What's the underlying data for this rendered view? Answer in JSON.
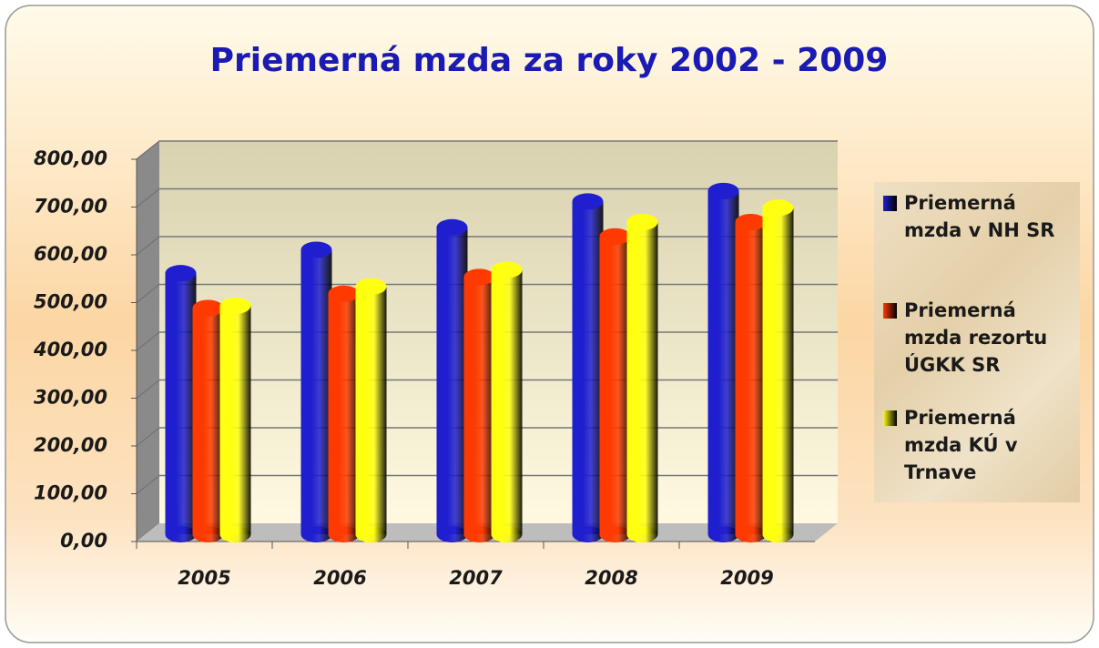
{
  "chart_data": {
    "type": "bar",
    "title": "Priemerná mzda za roky 2002 - 2009",
    "categories": [
      "2005",
      "2006",
      "2007",
      "2008",
      "2009"
    ],
    "series": [
      {
        "name": "Priemerná mzda v NH SR",
        "color": "#1f1fd0",
        "values": [
          573,
          622,
          669,
          723,
          745
        ]
      },
      {
        "name": "Priemerná mzda rezortu ÚGKK SR",
        "color": "#ff3a00",
        "values": [
          500,
          530,
          565,
          650,
          680
        ]
      },
      {
        "name": "Priemerná mzda KÚ v Trnave",
        "color": "#ffff10",
        "values": [
          505,
          545,
          580,
          680,
          710
        ]
      }
    ],
    "ylim": [
      0,
      800
    ],
    "yticks": [
      {
        "value": 0,
        "label": "0,00"
      },
      {
        "value": 100,
        "label": "100,00"
      },
      {
        "value": 200,
        "label": "200,00"
      },
      {
        "value": 300,
        "label": "300,00"
      },
      {
        "value": 400,
        "label": "400,00"
      },
      {
        "value": 500,
        "label": "500,00"
      },
      {
        "value": 600,
        "label": "600,00"
      },
      {
        "value": 700,
        "label": "700,00"
      },
      {
        "value": 800,
        "label": "800,00"
      }
    ],
    "grid": true,
    "legend": "right"
  }
}
